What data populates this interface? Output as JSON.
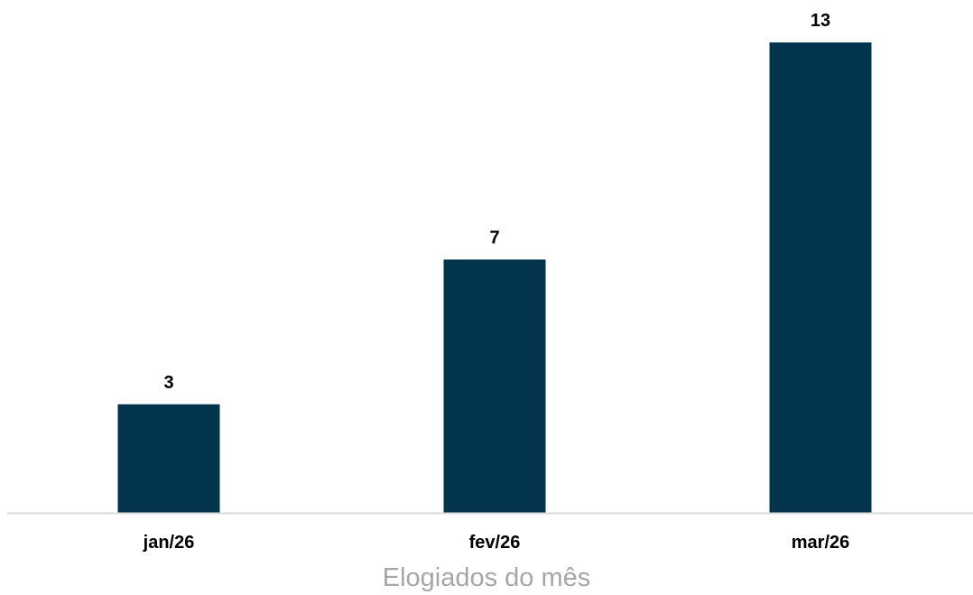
{
  "chart_data": {
    "type": "bar",
    "categories": [
      "jan/26",
      "fev/26",
      "mar/26"
    ],
    "values": [
      3,
      7,
      13
    ],
    "data_labels": [
      "3",
      "7",
      "13"
    ],
    "title": "",
    "xlabel": "Elogiados do mês",
    "ylabel": "",
    "ylim": [
      0,
      13
    ],
    "grid": false,
    "legend": "none",
    "colors": {
      "bar": "#02354d",
      "axis_line": "#d9d9d9",
      "xlabel": "#a6a6a6",
      "labels": "#000000"
    }
  }
}
